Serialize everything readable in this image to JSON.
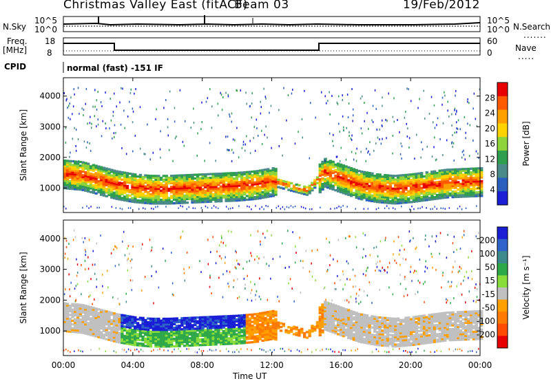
{
  "header": {
    "title": "Christmas Valley East (fitACF)",
    "beam": "Beam 03",
    "date": "19/Feb/2012"
  },
  "status": {
    "nsky_label": "N.Sky",
    "nsky_ticks": [
      "10^5",
      "10^0"
    ],
    "nsearch_label": "N.Search",
    "nsearch_ticks": [
      "10^5",
      "10^0"
    ],
    "freq_label": "Freq.",
    "freq_unit": "[MHz]",
    "freq_ticks": [
      "18",
      "8"
    ],
    "nave_label": "Nave",
    "nave_ticks": [
      "60",
      "0"
    ],
    "cpid_label": "CPID",
    "cpid_text": "normal (fast) -151 IF"
  },
  "power_colorbar": {
    "label": "Power [dB]",
    "ticks": [
      "28",
      "24",
      "20",
      "16",
      "12",
      "8",
      "4"
    ],
    "colors": [
      "#e80000",
      "#ff5a00",
      "#ff9f00",
      "#ffd200",
      "#8fd43a",
      "#2f9e4e",
      "#4a8b8a",
      "#2b5fbf",
      "#1a1fd6"
    ]
  },
  "velocity_colorbar": {
    "label": "Velocity [m s⁻¹]",
    "ticks": [
      "200",
      "100",
      "50",
      "15",
      "-15",
      "-50",
      "-100",
      "-200"
    ],
    "colors": [
      "#1a1fd6",
      "#2f63c9",
      "#3d8a8d",
      "#2fa84a",
      "#88dd3a",
      "#c0c0c0",
      "#ffa000",
      "#ff7a00",
      "#ff4a00",
      "#e80000"
    ]
  },
  "chart_data": [
    {
      "type": "heatmap",
      "name": "power",
      "ylabel": "Slant Range [km]",
      "xlabel": "",
      "x_ticks": [
        "00:00",
        "04:00",
        "08:00",
        "12:00",
        "16:00",
        "20:00",
        "00:00"
      ],
      "y_ticks": [
        "1000",
        "2000",
        "3000",
        "4000"
      ],
      "xlim_hours": [
        0,
        24
      ],
      "ylim_km": [
        200,
        4600
      ],
      "band_center_km": [
        [
          0,
          1450
        ],
        [
          1,
          1400
        ],
        [
          2,
          1250
        ],
        [
          3,
          1100
        ],
        [
          4,
          1000
        ],
        [
          5,
          950
        ],
        [
          6,
          950
        ],
        [
          8,
          1000
        ],
        [
          10,
          1050
        ],
        [
          11,
          1100
        ],
        [
          12,
          1200
        ],
        [
          13,
          1050
        ],
        [
          14,
          900
        ],
        [
          15,
          1500
        ],
        [
          16,
          1300
        ],
        [
          17,
          1100
        ],
        [
          18,
          1000
        ],
        [
          19,
          950
        ],
        [
          20,
          1000
        ],
        [
          22,
          1150
        ],
        [
          24,
          1200
        ]
      ]
    },
    {
      "type": "heatmap",
      "name": "velocity",
      "ylabel": "Slant Range [km]",
      "xlabel": "Time UT",
      "x_ticks": [
        "00:00",
        "04:00",
        "08:00",
        "12:00",
        "16:00",
        "20:00",
        "00:00"
      ],
      "y_ticks": [
        "1000",
        "2000",
        "3000",
        "4000"
      ],
      "xlim_hours": [
        0,
        24
      ],
      "ylim_km": [
        200,
        4600
      ]
    }
  ]
}
